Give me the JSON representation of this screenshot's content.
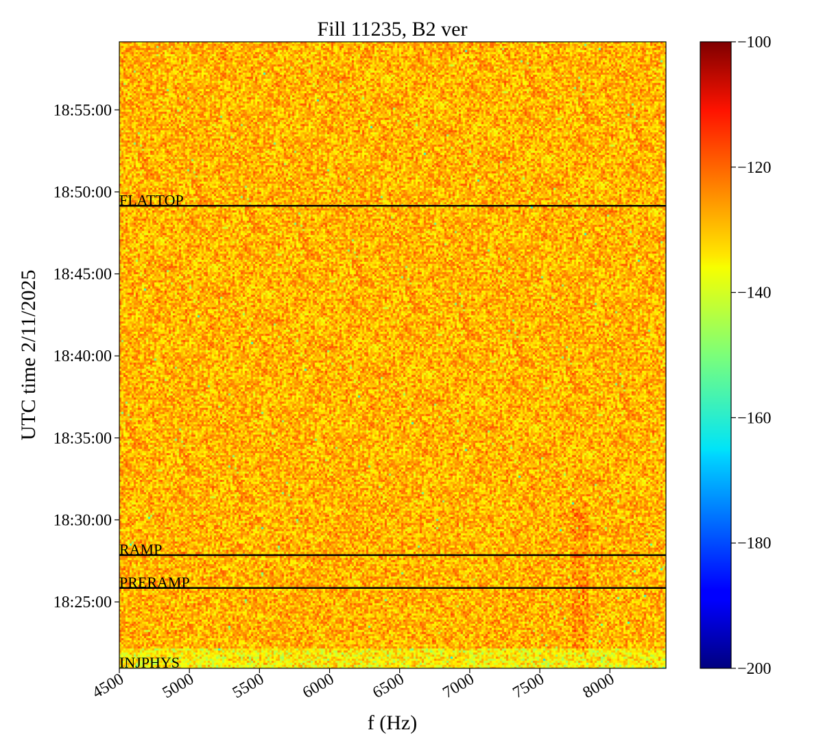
{
  "chart_data": {
    "type": "heatmap",
    "title": "Fill 11235, B2 ver",
    "xlabel": "f (Hz)",
    "ylabel": "UTC time 2/11/2025",
    "xlim": [
      4500,
      8400
    ],
    "ylim": [
      "18:20:57",
      "18:59:09"
    ],
    "x_ticks": [
      "4500",
      "5000",
      "5500",
      "6000",
      "6500",
      "7000",
      "7500",
      "8000"
    ],
    "y_ticks": [
      "18:25:00",
      "18:30:00",
      "18:35:00",
      "18:40:00",
      "18:45:00",
      "18:50:00",
      "18:55:00"
    ],
    "colorbar": {
      "colormap": "jet",
      "range": [
        -200,
        -100
      ],
      "ticks": [
        "−100",
        "−120",
        "−140",
        "−160",
        "−180",
        "−200"
      ]
    },
    "typical_value_range": [
      -140,
      -120
    ],
    "markers": [
      {
        "label": "FLATTOP",
        "time": "18:49:09"
      },
      {
        "label": "RAMP",
        "time": "18:27:51"
      },
      {
        "label": "PRERAMP",
        "time": "18:25:51"
      },
      {
        "label": "INJPHYS",
        "time": "18:20:57"
      }
    ],
    "features": [
      {
        "description": "warmer band near 7800 Hz",
        "x": 7780,
        "time_range": [
          "18:22:00",
          "18:31:00"
        ]
      },
      {
        "description": "cooler band at start",
        "time_range": [
          "18:20:57",
          "18:22:10"
        ]
      }
    ]
  }
}
